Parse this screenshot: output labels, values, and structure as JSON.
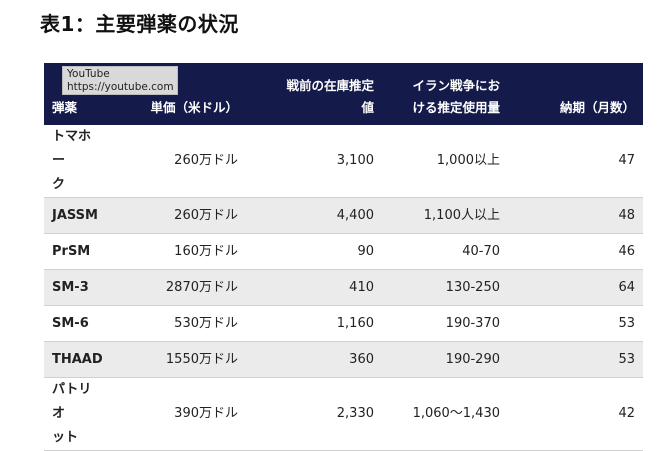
{
  "title": "表1：主要弾薬の状況",
  "tooltip": {
    "line1": "YouTube",
    "line2": "https://youtube.com"
  },
  "table": {
    "headers": {
      "name": "弾薬",
      "price": "単価（米ドル）",
      "stock_line1": "戦前の在庫推定",
      "stock_line2": "値",
      "use_line1": "イラン戦争にお",
      "use_line2": "ける推定使用量",
      "lead": "納期（月数）"
    },
    "rows": [
      {
        "name_line1": "トマホー",
        "name_line2": "ク",
        "price": "260万ドル",
        "stock": "3,100",
        "use": "1,000以上",
        "lead": "47"
      },
      {
        "name": "JASSM",
        "price": "260万ドル",
        "stock": "4,400",
        "use": "1,100人以上",
        "lead": "48"
      },
      {
        "name": "PrSM",
        "price": "160万ドル",
        "stock": "90",
        "use": "40-70",
        "lead": "46"
      },
      {
        "name": "SM-3",
        "price": "2870万ドル",
        "stock": "410",
        "use": "130-250",
        "lead": "64"
      },
      {
        "name": "SM-6",
        "price": "530万ドル",
        "stock": "1,160",
        "use": "190-370",
        "lead": "53"
      },
      {
        "name": "THAAD",
        "price": "1550万ドル",
        "stock": "360",
        "use": "190-290",
        "lead": "53"
      },
      {
        "name_line1": "パトリオ",
        "name_line2": "ット",
        "price": "390万ドル",
        "stock": "2,330",
        "use": "1,060～1,430",
        "lead": "42"
      }
    ]
  }
}
